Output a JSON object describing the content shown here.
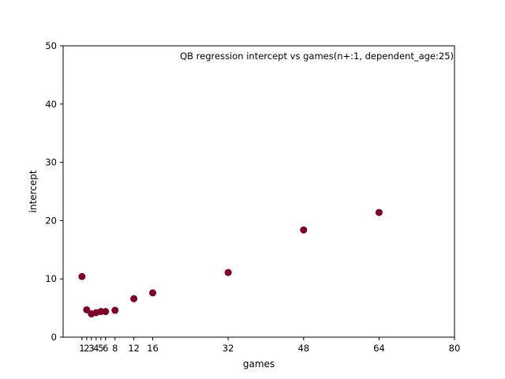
{
  "chart_data": {
    "type": "scatter",
    "title": "QB regression intercept vs games(n+:1, dependent_age:25)",
    "xlabel": "games",
    "ylabel": "intercept",
    "xlim": [
      -3,
      80
    ],
    "ylim": [
      0,
      50
    ],
    "xticks": [
      1,
      2,
      3,
      4,
      5,
      6,
      8,
      12,
      16,
      32,
      48,
      64,
      80
    ],
    "yticks": [
      0,
      10,
      20,
      30,
      40,
      50
    ],
    "grid": false,
    "legend": "none",
    "marker_color": "#7b0028",
    "series": [
      {
        "x": [
          1,
          2,
          3,
          4,
          5,
          6,
          8,
          12,
          16,
          32,
          48,
          64
        ],
        "y": [
          10.4,
          4.7,
          4.0,
          4.2,
          4.4,
          4.4,
          4.6,
          6.6,
          7.6,
          11.1,
          18.4,
          21.4
        ]
      }
    ]
  }
}
